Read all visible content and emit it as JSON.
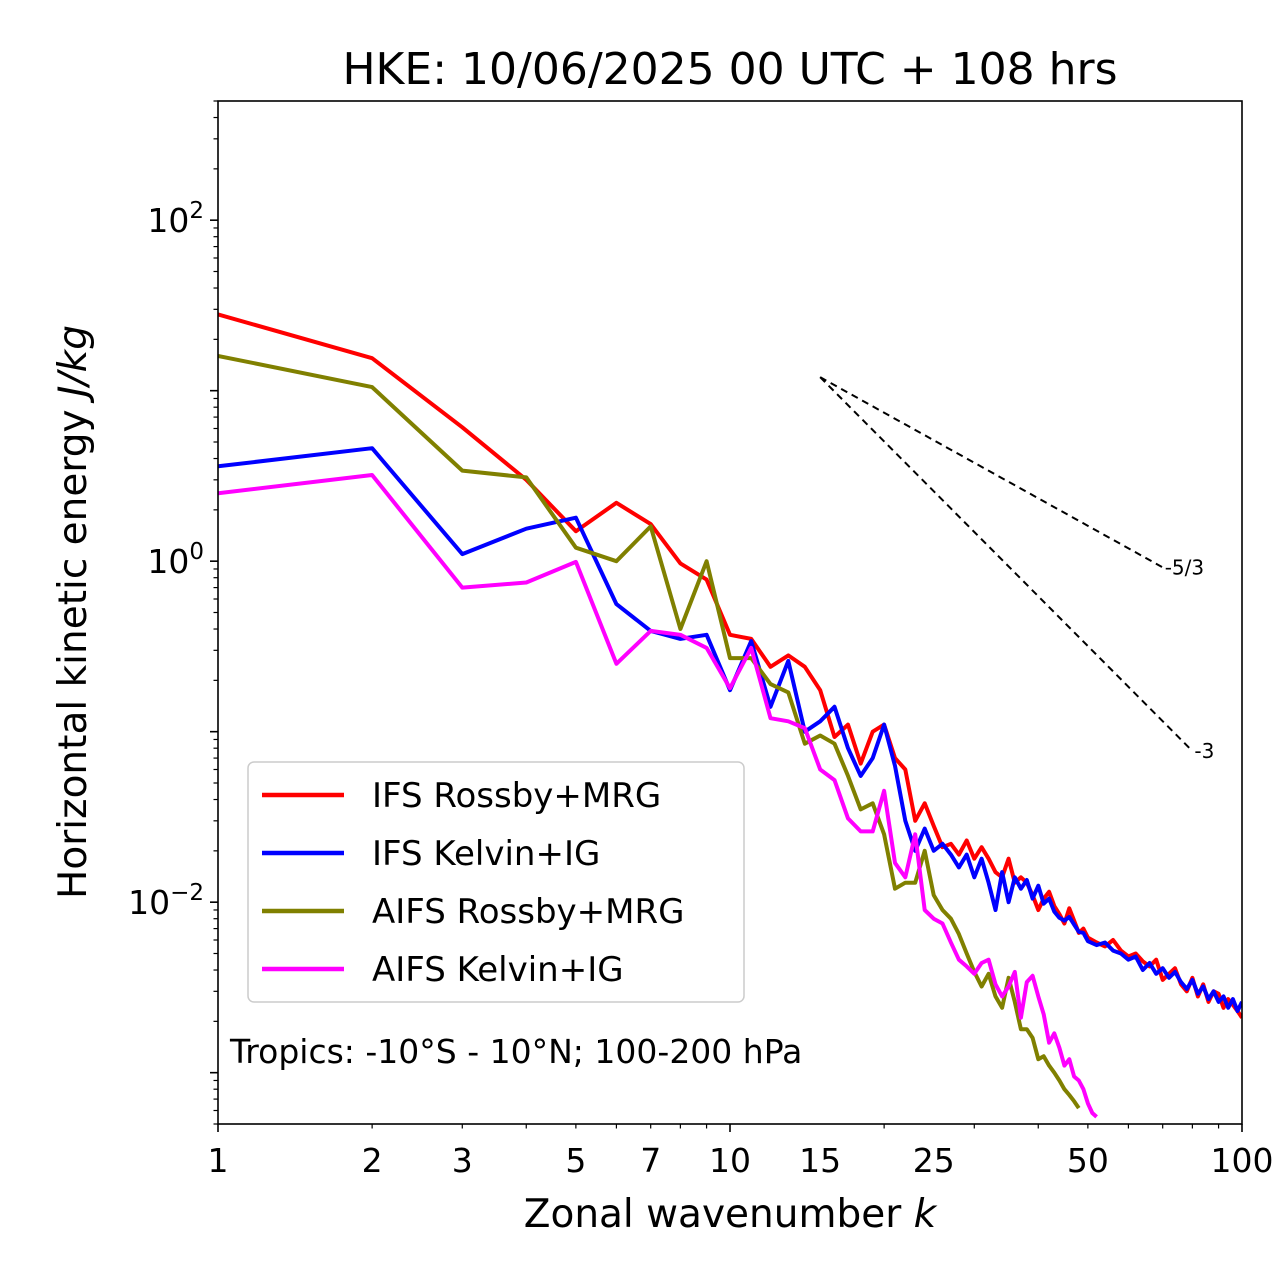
{
  "chart_data": {
    "type": "line",
    "title": "HKE: 10/06/2025 00 UTC + 108 hrs",
    "xlabel": "Zonal wavenumber",
    "xlabel_var": "k",
    "ylabel": "Horizontal kinetic energy",
    "ylabel_unit": "J/kg",
    "xscale": "log",
    "yscale": "log",
    "xlim": [
      1,
      100
    ],
    "ylim": [
      0.0005,
      500
    ],
    "x_ticks": [
      {
        "value": 1,
        "label": "1"
      },
      {
        "value": 2,
        "label": "2"
      },
      {
        "value": 3,
        "label": "3"
      },
      {
        "value": 5,
        "label": "5"
      },
      {
        "value": 7,
        "label": "7"
      },
      {
        "value": 10,
        "label": "10"
      },
      {
        "value": 15,
        "label": "15"
      },
      {
        "value": 25,
        "label": "25"
      },
      {
        "value": 50,
        "label": "50"
      },
      {
        "value": 100,
        "label": "100"
      }
    ],
    "y_ticks": [
      {
        "value": 0.01,
        "base": "10",
        "exp": "−2"
      },
      {
        "value": 1,
        "base": "10",
        "exp": "0"
      },
      {
        "value": 100,
        "base": "10",
        "exp": "2"
      }
    ],
    "legend_position": "lower-left",
    "grid": false,
    "annotation": "Tropics: -10°S - 10°N; 100-200 hPa",
    "reference_slopes": [
      {
        "label": "-5/3",
        "x": [
          15,
          70
        ],
        "y": [
          12,
          0.92
        ]
      },
      {
        "label": "-3",
        "x": [
          15,
          80
        ],
        "y": [
          12,
          0.077
        ]
      }
    ],
    "series": [
      {
        "name": "IFS Rossby+MRG",
        "color": "#ff0000",
        "x": [
          1,
          2,
          3,
          4,
          5,
          6,
          7,
          8,
          9,
          10,
          11,
          12,
          13,
          14,
          15,
          16,
          17,
          18,
          19,
          20,
          21,
          22,
          23,
          24,
          25,
          26,
          27,
          28,
          29,
          30,
          31,
          32,
          33,
          34,
          35,
          36,
          37,
          38,
          39,
          40,
          41,
          42,
          43,
          44,
          45,
          46,
          47,
          48,
          49,
          50,
          52,
          54,
          56,
          58,
          60,
          62,
          64,
          66,
          68,
          70,
          72,
          74,
          76,
          78,
          80,
          82,
          84,
          86,
          88,
          90,
          92,
          94,
          96,
          98,
          100
        ],
        "y": [
          28,
          15.5,
          6.1,
          3.0,
          1.5,
          2.2,
          1.65,
          0.97,
          0.78,
          0.37,
          0.35,
          0.24,
          0.28,
          0.24,
          0.175,
          0.093,
          0.11,
          0.065,
          0.1,
          0.11,
          0.07,
          0.06,
          0.03,
          0.038,
          0.028,
          0.021,
          0.022,
          0.019,
          0.023,
          0.018,
          0.021,
          0.018,
          0.015,
          0.014,
          0.018,
          0.013,
          0.014,
          0.013,
          0.011,
          0.009,
          0.0105,
          0.0115,
          0.0095,
          0.0085,
          0.0075,
          0.0092,
          0.0078,
          0.0066,
          0.007,
          0.0062,
          0.0058,
          0.0055,
          0.006,
          0.0052,
          0.0048,
          0.005,
          0.0045,
          0.0042,
          0.0046,
          0.0035,
          0.0038,
          0.0041,
          0.0033,
          0.003,
          0.0036,
          0.0028,
          0.0033,
          0.0026,
          0.003,
          0.0029,
          0.0024,
          0.0027,
          0.0025,
          0.0023,
          0.0021
        ]
      },
      {
        "name": "IFS Kelvin+IG",
        "color": "#0000ff",
        "x": [
          1,
          2,
          3,
          4,
          5,
          6,
          7,
          8,
          9,
          10,
          11,
          12,
          13,
          14,
          15,
          16,
          17,
          18,
          19,
          20,
          21,
          22,
          23,
          24,
          25,
          26,
          27,
          28,
          29,
          30,
          31,
          32,
          33,
          34,
          35,
          36,
          37,
          38,
          39,
          40,
          41,
          42,
          43,
          44,
          45,
          46,
          47,
          48,
          49,
          50,
          52,
          54,
          56,
          58,
          60,
          62,
          64,
          66,
          68,
          70,
          72,
          74,
          76,
          78,
          80,
          82,
          84,
          86,
          88,
          90,
          92,
          94,
          96,
          98,
          100
        ],
        "y": [
          3.6,
          4.6,
          1.1,
          1.55,
          1.8,
          0.56,
          0.39,
          0.35,
          0.37,
          0.175,
          0.34,
          0.14,
          0.26,
          0.1,
          0.115,
          0.14,
          0.08,
          0.055,
          0.07,
          0.11,
          0.063,
          0.03,
          0.02,
          0.027,
          0.02,
          0.022,
          0.019,
          0.016,
          0.019,
          0.014,
          0.018,
          0.013,
          0.009,
          0.015,
          0.01,
          0.014,
          0.012,
          0.0135,
          0.0105,
          0.0125,
          0.0098,
          0.0105,
          0.0088,
          0.0081,
          0.0078,
          0.0082,
          0.0074,
          0.0067,
          0.0066,
          0.0059,
          0.0056,
          0.0058,
          0.0052,
          0.005,
          0.0046,
          0.0048,
          0.004,
          0.0044,
          0.0038,
          0.0041,
          0.0036,
          0.0039,
          0.0034,
          0.0031,
          0.0035,
          0.0029,
          0.0032,
          0.0027,
          0.003,
          0.0026,
          0.0028,
          0.0024,
          0.0027,
          0.0023,
          0.0026
        ]
      },
      {
        "name": "AIFS Rossby+MRG",
        "color": "#808000",
        "x": [
          1,
          2,
          3,
          4,
          5,
          6,
          7,
          8,
          9,
          10,
          11,
          12,
          13,
          14,
          15,
          16,
          17,
          18,
          19,
          20,
          21,
          22,
          23,
          24,
          25,
          26,
          27,
          28,
          29,
          30,
          31,
          32,
          33,
          34,
          35,
          36,
          37,
          38,
          39,
          40,
          41,
          42,
          43,
          44,
          45,
          46,
          47,
          48
        ],
        "y": [
          16,
          10.5,
          3.4,
          3.1,
          1.2,
          1.0,
          1.6,
          0.4,
          1.0,
          0.27,
          0.27,
          0.19,
          0.17,
          0.085,
          0.095,
          0.085,
          0.055,
          0.035,
          0.038,
          0.025,
          0.012,
          0.013,
          0.013,
          0.02,
          0.011,
          0.009,
          0.008,
          0.0065,
          0.005,
          0.0039,
          0.0032,
          0.0038,
          0.0028,
          0.0024,
          0.0036,
          0.0026,
          0.0018,
          0.0018,
          0.0016,
          0.0012,
          0.00125,
          0.0011,
          0.001,
          0.0009,
          0.0008,
          0.00074,
          0.00068,
          0.00062
        ]
      },
      {
        "name": "AIFS Kelvin+IG",
        "color": "#ff00ff",
        "x": [
          1,
          2,
          3,
          4,
          5,
          6,
          7,
          8,
          9,
          10,
          11,
          12,
          13,
          14,
          15,
          16,
          17,
          18,
          19,
          20,
          21,
          22,
          23,
          24,
          25,
          26,
          27,
          28,
          29,
          30,
          31,
          32,
          33,
          34,
          35,
          36,
          37,
          38,
          39,
          40,
          41,
          42,
          43,
          44,
          45,
          46,
          47,
          48,
          49,
          50,
          51,
          52
        ],
        "y": [
          2.5,
          3.2,
          0.7,
          0.75,
          0.99,
          0.25,
          0.39,
          0.37,
          0.31,
          0.18,
          0.31,
          0.12,
          0.115,
          0.105,
          0.06,
          0.052,
          0.031,
          0.026,
          0.026,
          0.045,
          0.017,
          0.014,
          0.025,
          0.009,
          0.008,
          0.0075,
          0.0058,
          0.0046,
          0.0042,
          0.0038,
          0.0044,
          0.0046,
          0.0033,
          0.0028,
          0.0032,
          0.0039,
          0.0021,
          0.0034,
          0.0037,
          0.0028,
          0.0022,
          0.0015,
          0.0017,
          0.0014,
          0.0011,
          0.0012,
          0.00095,
          0.0009,
          0.0008,
          0.00066,
          0.00058,
          0.00055
        ]
      }
    ]
  }
}
